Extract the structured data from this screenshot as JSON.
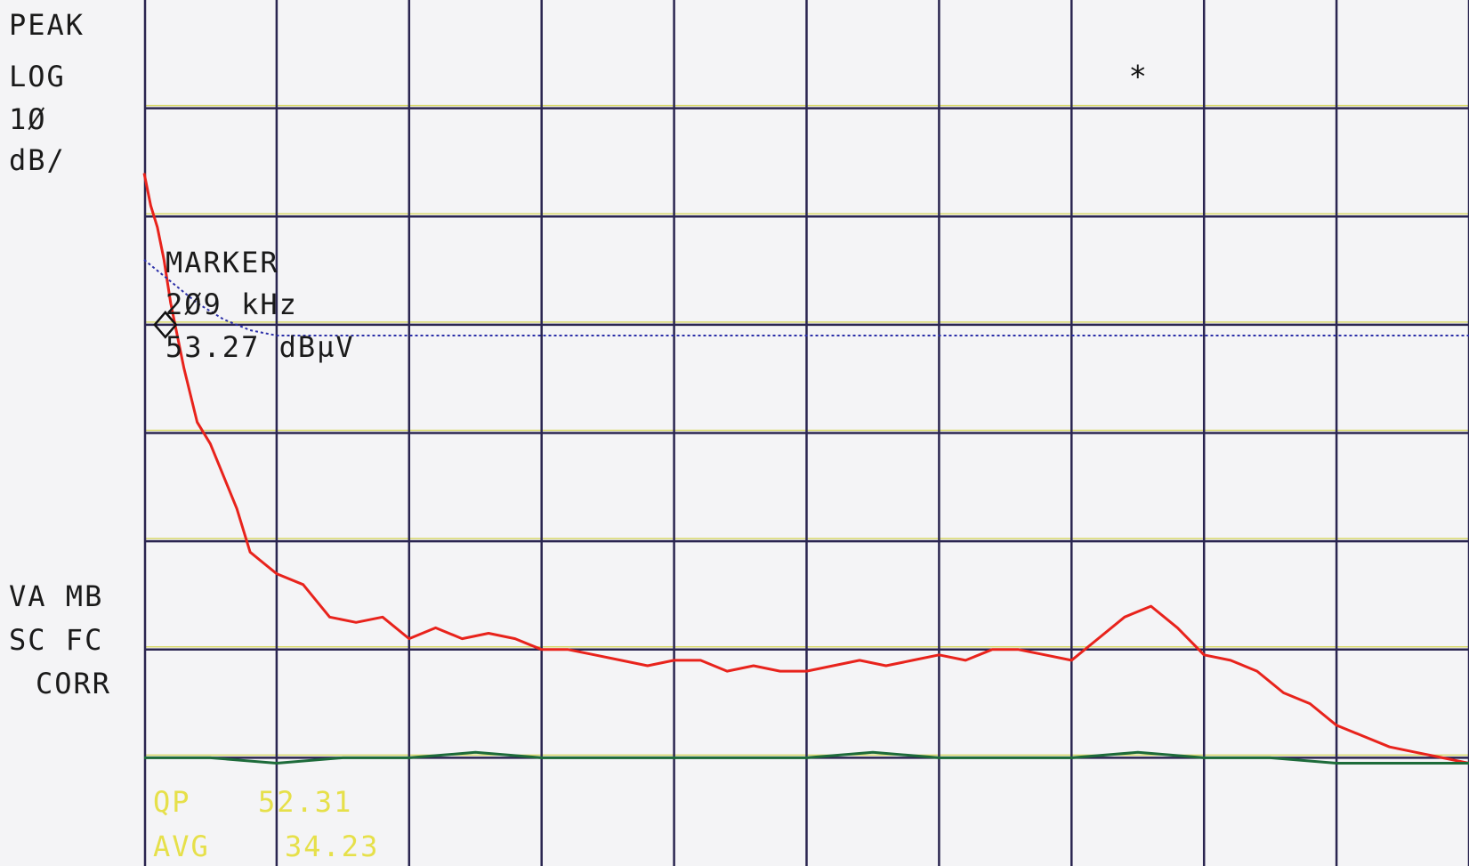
{
  "header": {
    "detector": "PEAK",
    "scale_lines": [
      "LOG",
      "1Ø",
      "dB/"
    ]
  },
  "marker": {
    "title": "MARKER",
    "freq": "2Ø9 kHz",
    "level": "53.27 dBµV"
  },
  "status": {
    "line1": "VA MB",
    "line2": "SC FC",
    "line3": "CORR"
  },
  "readout": {
    "qp_label": "QP",
    "qp_value": "52.31",
    "avg_label": "AVG",
    "avg_value": "34.23"
  },
  "chart_data": {
    "type": "line",
    "grid": true,
    "x_divisions": 10,
    "y_divisions": 8,
    "colors": {
      "grid": "#2a2550",
      "grid_minor": "#d8d86a",
      "peak": "#e8231c",
      "avg": "#1d6b3a",
      "limit": "#2b2fa8",
      "trace_dark": "#1a1a1a"
    },
    "series": [
      {
        "color": "#e8231c",
        "x": [
          0.0,
          0.05,
          0.1,
          0.15,
          0.2,
          0.3,
          0.4,
          0.5,
          0.6,
          0.7,
          0.8,
          0.9,
          1.0,
          1.2,
          1.4,
          1.6,
          1.8,
          2.0,
          2.2,
          2.4,
          2.6,
          2.8,
          3.0,
          3.2,
          3.4,
          3.6,
          3.8,
          4.0,
          4.2,
          4.4,
          4.6,
          4.8,
          5.0,
          5.2,
          5.4,
          5.6,
          5.8,
          6.0,
          6.2,
          6.4,
          6.6,
          6.8,
          7.0,
          7.2,
          7.4,
          7.6,
          7.8,
          8.0,
          8.2,
          8.4,
          8.6,
          8.8,
          9.0,
          9.2,
          9.4,
          9.6,
          9.8,
          10.0
        ],
        "y": [
          6.4,
          6.1,
          5.9,
          5.6,
          5.2,
          4.6,
          4.1,
          3.9,
          3.6,
          3.3,
          2.9,
          2.8,
          2.7,
          2.6,
          2.3,
          2.25,
          2.3,
          2.1,
          2.2,
          2.1,
          2.15,
          2.1,
          2.0,
          2.0,
          1.95,
          1.9,
          1.85,
          1.9,
          1.9,
          1.8,
          1.85,
          1.8,
          1.8,
          1.85,
          1.9,
          1.85,
          1.9,
          1.95,
          1.9,
          2.0,
          2.0,
          1.95,
          1.9,
          2.1,
          2.3,
          2.4,
          2.2,
          1.95,
          1.9,
          1.8,
          1.6,
          1.5,
          1.3,
          1.2,
          1.1,
          1.05,
          1.0,
          0.95
        ]
      },
      {
        "color": "#1d6b3a",
        "x": [
          0.0,
          0.5,
          1.0,
          1.5,
          2.0,
          2.5,
          3.0,
          3.5,
          4.0,
          4.5,
          5.0,
          5.5,
          6.0,
          6.5,
          7.0,
          7.5,
          8.0,
          8.5,
          9.0,
          9.5,
          10.0
        ],
        "y": [
          1.0,
          1.0,
          0.95,
          1.0,
          1.0,
          1.05,
          1.0,
          1.0,
          1.0,
          1.0,
          1.0,
          1.05,
          1.0,
          1.0,
          1.0,
          1.05,
          1.0,
          1.0,
          0.95,
          0.95,
          0.95
        ]
      },
      {
        "color": "#2b2fa8",
        "x": [
          0.0,
          0.2,
          0.4,
          0.6,
          0.8,
          1.0,
          1.2,
          2.0,
          4.0,
          6.0,
          8.0,
          10.0
        ],
        "y": [
          5.6,
          5.4,
          5.2,
          5.05,
          4.95,
          4.9,
          4.9,
          4.9,
          4.9,
          4.9,
          4.9,
          4.9
        ]
      }
    ],
    "marker_point": {
      "x": 0.16,
      "y": 5.0
    },
    "symbol": "*"
  }
}
